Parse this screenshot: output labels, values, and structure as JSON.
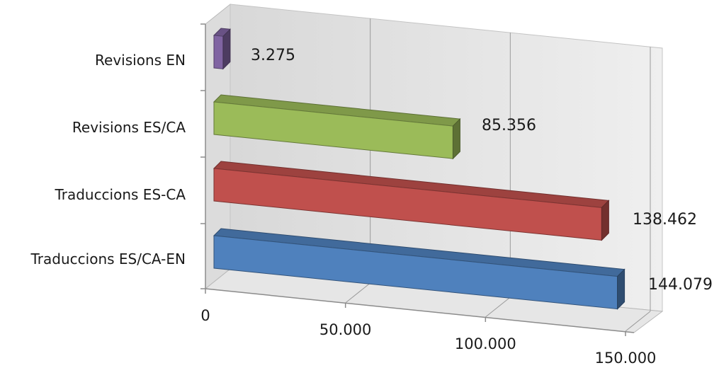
{
  "chart_data": {
    "type": "bar",
    "orientation": "horizontal",
    "style": "3d",
    "categories": [
      "Revisions EN",
      "Revisions ES/CA",
      "Traduccions ES-CA",
      "Traduccions ES/CA-EN"
    ],
    "values": [
      3275,
      85356,
      138462,
      144079
    ],
    "value_labels": [
      "3.275",
      "85.356",
      "138.462",
      "144.079"
    ],
    "bar_colors": [
      "#8064a2",
      "#9bbb59",
      "#c0504d",
      "#4f81bd"
    ],
    "xlim": [
      0,
      150000
    ],
    "x_ticks": [
      0,
      50000,
      100000,
      150000
    ],
    "x_tick_labels": [
      "0",
      "50.000",
      "100.000",
      "150.000"
    ],
    "grid": true,
    "legend": false,
    "title": "",
    "xlabel": "",
    "ylabel": ""
  }
}
